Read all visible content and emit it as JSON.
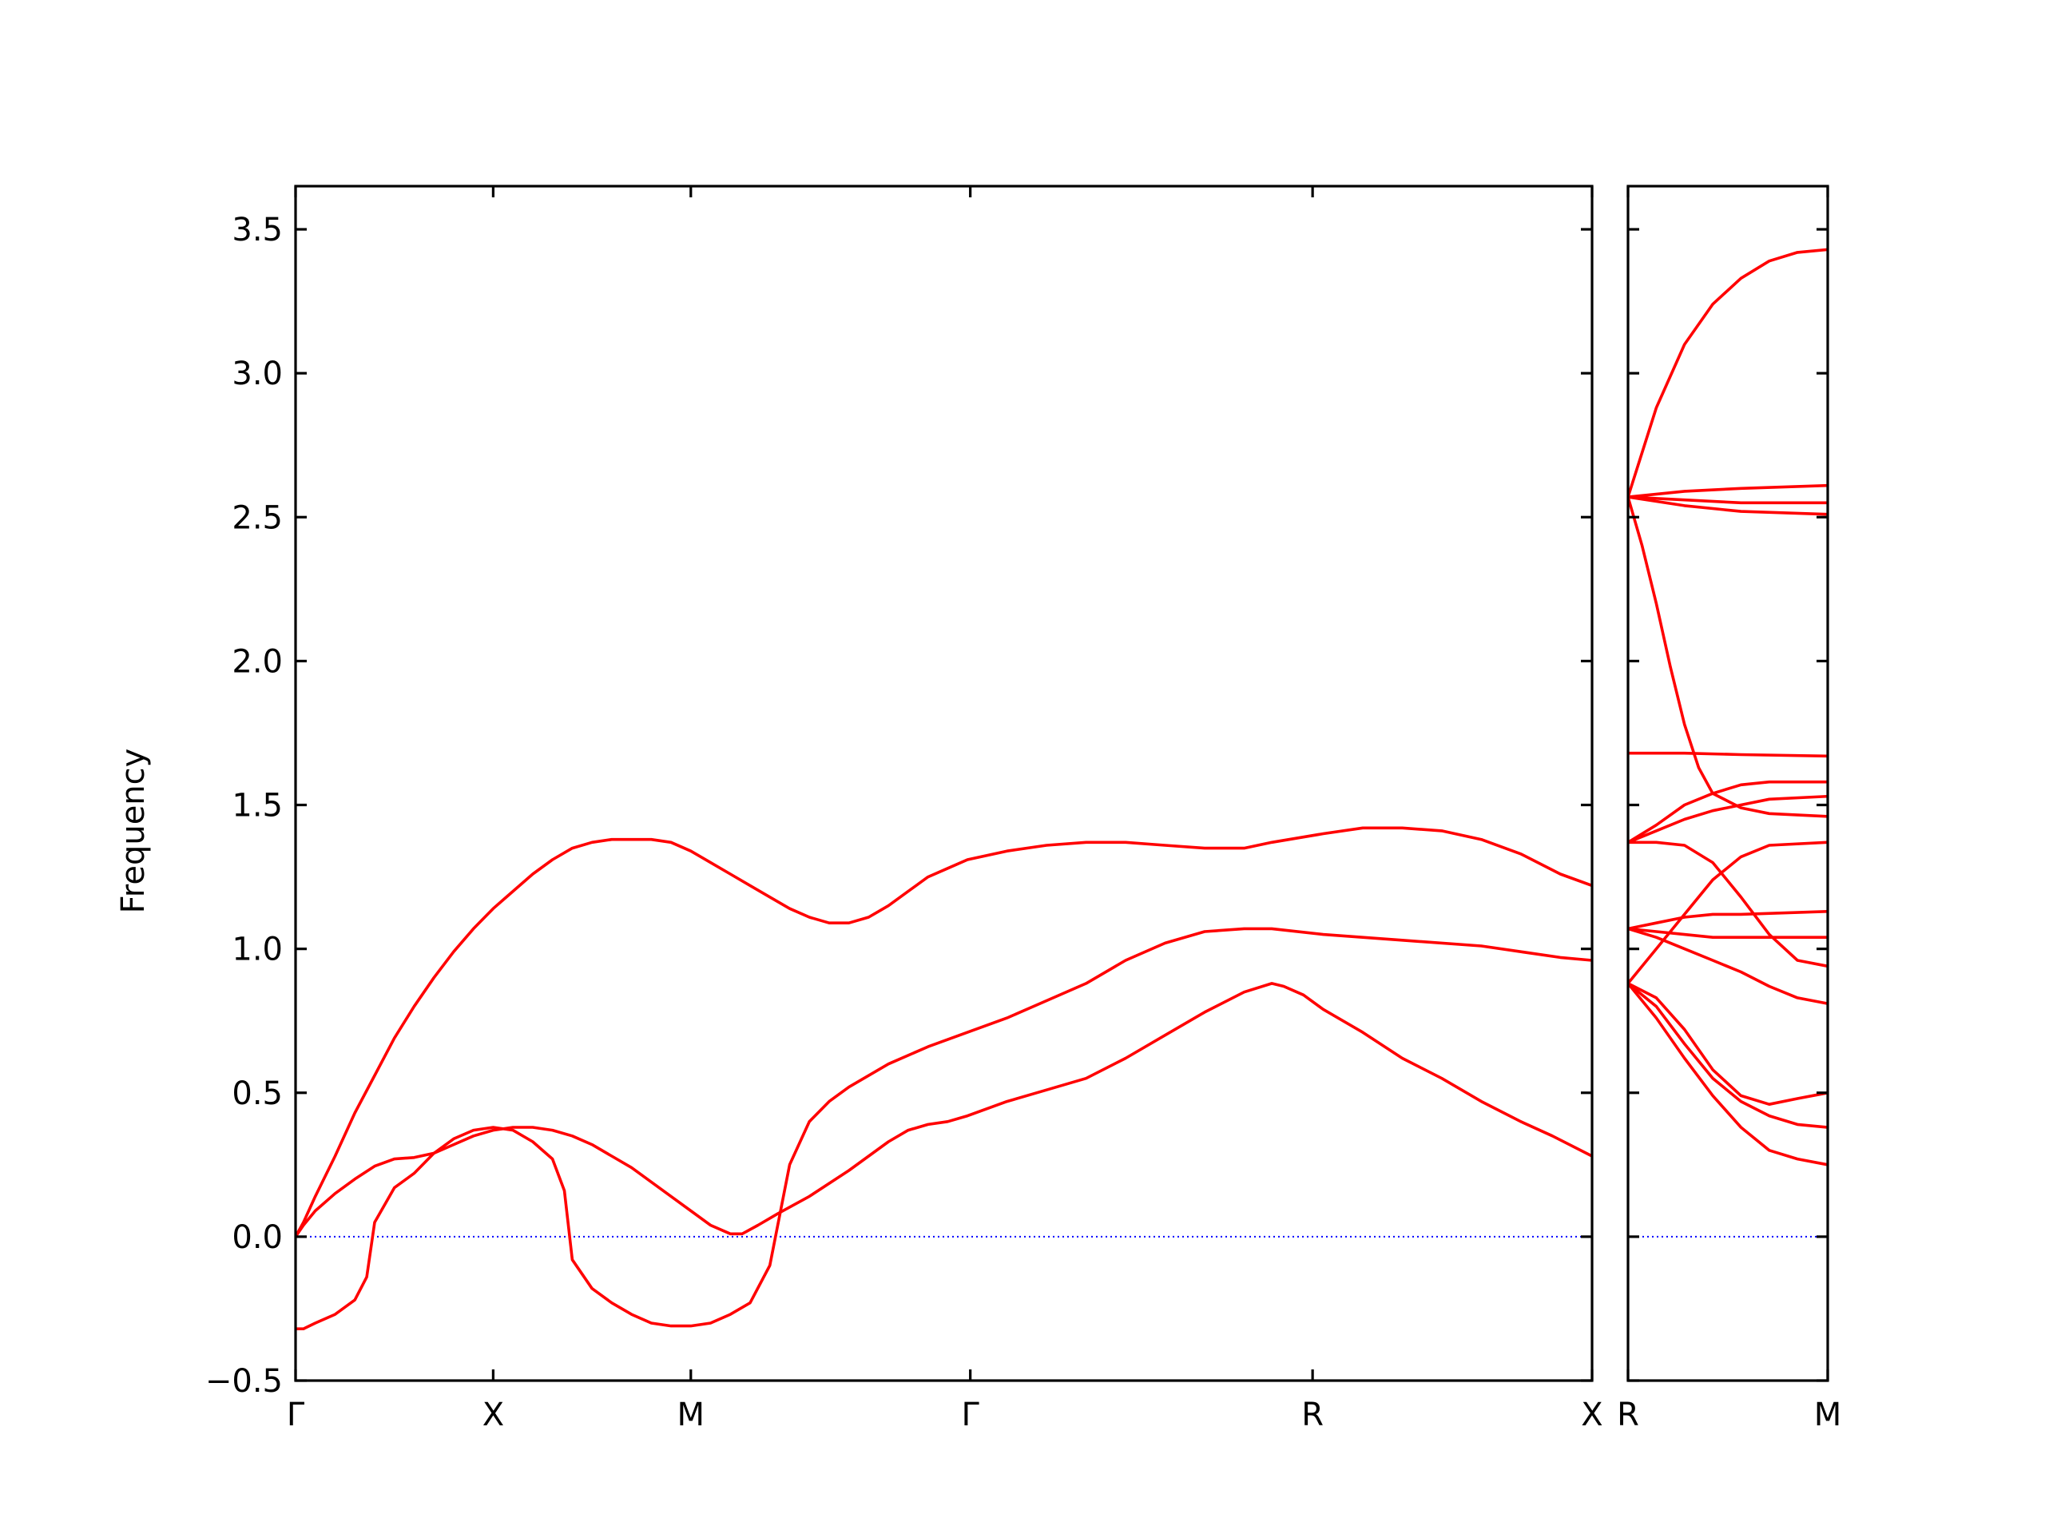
{
  "chart_data": {
    "type": "line",
    "ylabel": "Frequency",
    "ylim": [
      -0.5,
      3.65
    ],
    "yticks": [
      -0.5,
      0.0,
      0.5,
      1.0,
      1.5,
      2.0,
      2.5,
      3.0,
      3.5
    ],
    "ytick_labels": [
      "−0.5",
      "0.0",
      "0.5",
      "1.0",
      "1.5",
      "2.0",
      "2.5",
      "3.0",
      "3.5"
    ],
    "band_color": "#ff0000",
    "zero_line_color": "#0000ff",
    "panels": [
      {
        "segments": [
          {
            "from": "Γ",
            "to": "X",
            "length": 0.5
          },
          {
            "from": "X",
            "to": "M",
            "length": 0.5
          },
          {
            "from": "M",
            "to": "Γ",
            "length": 0.7071
          },
          {
            "from": "Γ",
            "to": "R",
            "length": 0.866
          },
          {
            "from": "R",
            "to": "X",
            "length": 0.7071
          }
        ],
        "tick_labels": [
          "Γ",
          "X",
          "M",
          "Γ",
          "R",
          "X"
        ],
        "bands": [
          [
            [
              0,
              0
            ],
            [
              0.02,
              0.04
            ],
            [
              0.05,
              0.09
            ],
            [
              0.1,
              0.15
            ],
            [
              0.15,
              0.2
            ],
            [
              0.2,
              0.245
            ],
            [
              0.25,
              0.27
            ],
            [
              0.3,
              0.275
            ],
            [
              0.35,
              0.29
            ],
            [
              0.4,
              0.32
            ],
            [
              0.45,
              0.35
            ],
            [
              0.5,
              0.37
            ],
            [
              0.55,
              0.38
            ],
            [
              0.6,
              0.38
            ],
            [
              0.65,
              0.37
            ],
            [
              0.7,
              0.35
            ],
            [
              0.75,
              0.32
            ],
            [
              0.8,
              0.28
            ],
            [
              0.85,
              0.24
            ],
            [
              0.9,
              0.19
            ],
            [
              0.95,
              0.14
            ],
            [
              1.0,
              0.09
            ],
            [
              1.05,
              0.04
            ],
            [
              1.1,
              0.01
            ],
            [
              1.13,
              0.01
            ],
            [
              1.17,
              0.04
            ],
            [
              1.22,
              0.08
            ],
            [
              1.3,
              0.14
            ],
            [
              1.4,
              0.23
            ],
            [
              1.5,
              0.33
            ],
            [
              1.55,
              0.37
            ],
            [
              1.6,
              0.39
            ],
            [
              1.65,
              0.4
            ],
            [
              1.7,
              0.42
            ],
            [
              1.8,
              0.47
            ],
            [
              1.9,
              0.51
            ],
            [
              2.0,
              0.55
            ],
            [
              2.1,
              0.62
            ],
            [
              2.2,
              0.7
            ],
            [
              2.3,
              0.78
            ],
            [
              2.4,
              0.85
            ],
            [
              2.47,
              0.88
            ],
            [
              2.5,
              0.87
            ],
            [
              2.55,
              0.84
            ],
            [
              2.6,
              0.79
            ],
            [
              2.7,
              0.71
            ],
            [
              2.8,
              0.62
            ],
            [
              2.9,
              0.55
            ],
            [
              3.0,
              0.47
            ],
            [
              3.1,
              0.4
            ],
            [
              3.18,
              0.35
            ],
            [
              3.28,
              0.28
            ]
          ],
          [
            [
              0,
              0
            ],
            [
              0.02,
              0.05
            ],
            [
              0.05,
              0.14
            ],
            [
              0.1,
              0.28
            ],
            [
              0.15,
              0.43
            ],
            [
              0.2,
              0.56
            ],
            [
              0.25,
              0.69
            ],
            [
              0.3,
              0.8
            ],
            [
              0.35,
              0.9
            ],
            [
              0.4,
              0.99
            ],
            [
              0.45,
              1.07
            ],
            [
              0.5,
              1.14
            ],
            [
              0.55,
              1.2
            ],
            [
              0.6,
              1.26
            ],
            [
              0.65,
              1.31
            ],
            [
              0.7,
              1.35
            ],
            [
              0.75,
              1.37
            ],
            [
              0.8,
              1.38
            ],
            [
              0.85,
              1.38
            ],
            [
              0.9,
              1.38
            ],
            [
              0.95,
              1.37
            ],
            [
              1.0,
              1.34
            ],
            [
              1.05,
              1.3
            ],
            [
              1.1,
              1.26
            ],
            [
              1.15,
              1.22
            ],
            [
              1.2,
              1.18
            ],
            [
              1.25,
              1.14
            ],
            [
              1.3,
              1.11
            ],
            [
              1.35,
              1.09
            ],
            [
              1.4,
              1.09
            ],
            [
              1.45,
              1.11
            ],
            [
              1.5,
              1.15
            ],
            [
              1.55,
              1.2
            ],
            [
              1.6,
              1.25
            ],
            [
              1.65,
              1.28
            ],
            [
              1.7,
              1.31
            ],
            [
              1.8,
              1.34
            ],
            [
              1.9,
              1.36
            ],
            [
              2.0,
              1.37
            ],
            [
              2.1,
              1.37
            ],
            [
              2.2,
              1.36
            ],
            [
              2.3,
              1.35
            ],
            [
              2.4,
              1.35
            ],
            [
              2.47,
              1.37
            ],
            [
              2.6,
              1.4
            ],
            [
              2.7,
              1.42
            ],
            [
              2.8,
              1.42
            ],
            [
              2.9,
              1.41
            ],
            [
              3.0,
              1.38
            ],
            [
              3.1,
              1.33
            ],
            [
              3.2,
              1.26
            ],
            [
              3.28,
              1.22
            ]
          ],
          [
            [
              0,
              -0.32
            ],
            [
              0.02,
              -0.32
            ],
            [
              0.05,
              -0.3
            ],
            [
              0.1,
              -0.27
            ],
            [
              0.15,
              -0.22
            ],
            [
              0.18,
              -0.14
            ],
            [
              0.2,
              0.05
            ],
            [
              0.25,
              0.17
            ],
            [
              0.3,
              0.22
            ],
            [
              0.35,
              0.29
            ],
            [
              0.4,
              0.34
            ],
            [
              0.45,
              0.37
            ],
            [
              0.5,
              0.38
            ],
            [
              0.55,
              0.37
            ],
            [
              0.6,
              0.33
            ],
            [
              0.65,
              0.27
            ],
            [
              0.68,
              0.16
            ],
            [
              0.7,
              -0.08
            ],
            [
              0.75,
              -0.18
            ],
            [
              0.8,
              -0.23
            ],
            [
              0.85,
              -0.27
            ],
            [
              0.9,
              -0.3
            ],
            [
              0.95,
              -0.31
            ],
            [
              1.0,
              -0.31
            ],
            [
              1.05,
              -0.3
            ],
            [
              1.1,
              -0.27
            ],
            [
              1.15,
              -0.23
            ],
            [
              1.2,
              -0.1
            ],
            [
              1.25,
              0.25
            ],
            [
              1.3,
              0.4
            ],
            [
              1.35,
              0.47
            ],
            [
              1.4,
              0.52
            ],
            [
              1.5,
              0.6
            ],
            [
              1.6,
              0.66
            ],
            [
              1.7,
              0.71
            ],
            [
              1.8,
              0.76
            ],
            [
              1.9,
              0.82
            ],
            [
              2.0,
              0.88
            ],
            [
              2.1,
              0.96
            ],
            [
              2.2,
              1.02
            ],
            [
              2.3,
              1.06
            ],
            [
              2.4,
              1.07
            ],
            [
              2.47,
              1.07
            ],
            [
              2.6,
              1.05
            ],
            [
              2.8,
              1.03
            ],
            [
              3.0,
              1.01
            ],
            [
              3.1,
              0.99
            ],
            [
              3.2,
              0.97
            ],
            [
              3.28,
              0.96
            ]
          ]
        ]
      },
      {
        "segments": [
          {
            "from": "R",
            "to": "M",
            "length": 0.7071
          }
        ],
        "tick_labels": [
          "R",
          "M"
        ],
        "bands": [
          [
            [
              0,
              2.57
            ],
            [
              0.1,
              2.88
            ],
            [
              0.2,
              3.1
            ],
            [
              0.3,
              3.24
            ],
            [
              0.4,
              3.33
            ],
            [
              0.5,
              3.39
            ],
            [
              0.6,
              3.42
            ],
            [
              0.7071,
              3.43
            ]
          ],
          [
            [
              0,
              2.57
            ],
            [
              0.2,
              2.59
            ],
            [
              0.4,
              2.6
            ],
            [
              0.7071,
              2.61
            ]
          ],
          [
            [
              0,
              2.57
            ],
            [
              0.2,
              2.56
            ],
            [
              0.4,
              2.55
            ],
            [
              0.7071,
              2.55
            ]
          ],
          [
            [
              0,
              2.57
            ],
            [
              0.2,
              2.54
            ],
            [
              0.4,
              2.52
            ],
            [
              0.7071,
              2.51
            ]
          ],
          [
            [
              0,
              2.57
            ],
            [
              0.05,
              2.4
            ],
            [
              0.1,
              2.2
            ],
            [
              0.15,
              1.98
            ],
            [
              0.2,
              1.78
            ],
            [
              0.25,
              1.63
            ],
            [
              0.3,
              1.54
            ],
            [
              0.4,
              1.49
            ],
            [
              0.5,
              1.47
            ],
            [
              0.7071,
              1.46
            ]
          ],
          [
            [
              0,
              1.68
            ],
            [
              0.2,
              1.68
            ],
            [
              0.4,
              1.675
            ],
            [
              0.7071,
              1.67
            ]
          ],
          [
            [
              0,
              1.37
            ],
            [
              0.1,
              1.43
            ],
            [
              0.2,
              1.5
            ],
            [
              0.3,
              1.54
            ],
            [
              0.4,
              1.57
            ],
            [
              0.5,
              1.58
            ],
            [
              0.7071,
              1.58
            ]
          ],
          [
            [
              0,
              1.37
            ],
            [
              0.1,
              1.41
            ],
            [
              0.2,
              1.45
            ],
            [
              0.3,
              1.48
            ],
            [
              0.4,
              1.5
            ],
            [
              0.5,
              1.52
            ],
            [
              0.7071,
              1.53
            ]
          ],
          [
            [
              0,
              1.37
            ],
            [
              0.1,
              1.37
            ],
            [
              0.2,
              1.36
            ],
            [
              0.3,
              1.3
            ],
            [
              0.4,
              1.18
            ],
            [
              0.5,
              1.05
            ],
            [
              0.6,
              0.96
            ],
            [
              0.7071,
              0.94
            ]
          ],
          [
            [
              0,
              0.88
            ],
            [
              0.1,
              1.0
            ],
            [
              0.2,
              1.12
            ],
            [
              0.3,
              1.24
            ],
            [
              0.4,
              1.32
            ],
            [
              0.5,
              1.36
            ],
            [
              0.7071,
              1.37
            ]
          ],
          [
            [
              0,
              1.07
            ],
            [
              0.1,
              1.09
            ],
            [
              0.2,
              1.11
            ],
            [
              0.3,
              1.12
            ],
            [
              0.4,
              1.12
            ],
            [
              0.7071,
              1.13
            ]
          ],
          [
            [
              0,
              1.07
            ],
            [
              0.1,
              1.06
            ],
            [
              0.2,
              1.05
            ],
            [
              0.3,
              1.04
            ],
            [
              0.4,
              1.04
            ],
            [
              0.7071,
              1.04
            ]
          ],
          [
            [
              0,
              1.07
            ],
            [
              0.1,
              1.04
            ],
            [
              0.2,
              1.0
            ],
            [
              0.3,
              0.96
            ],
            [
              0.4,
              0.92
            ],
            [
              0.5,
              0.87
            ],
            [
              0.6,
              0.83
            ],
            [
              0.7071,
              0.81
            ]
          ],
          [
            [
              0,
              0.88
            ],
            [
              0.1,
              0.83
            ],
            [
              0.2,
              0.72
            ],
            [
              0.3,
              0.58
            ],
            [
              0.4,
              0.49
            ],
            [
              0.5,
              0.46
            ],
            [
              0.6,
              0.48
            ],
            [
              0.7071,
              0.5
            ]
          ],
          [
            [
              0,
              0.88
            ],
            [
              0.1,
              0.8
            ],
            [
              0.2,
              0.67
            ],
            [
              0.3,
              0.55
            ],
            [
              0.4,
              0.47
            ],
            [
              0.5,
              0.42
            ],
            [
              0.6,
              0.39
            ],
            [
              0.7071,
              0.38
            ]
          ],
          [
            [
              0,
              0.88
            ],
            [
              0.1,
              0.76
            ],
            [
              0.2,
              0.62
            ],
            [
              0.3,
              0.49
            ],
            [
              0.4,
              0.38
            ],
            [
              0.5,
              0.3
            ],
            [
              0.6,
              0.27
            ],
            [
              0.7071,
              0.25
            ]
          ]
        ]
      }
    ]
  }
}
